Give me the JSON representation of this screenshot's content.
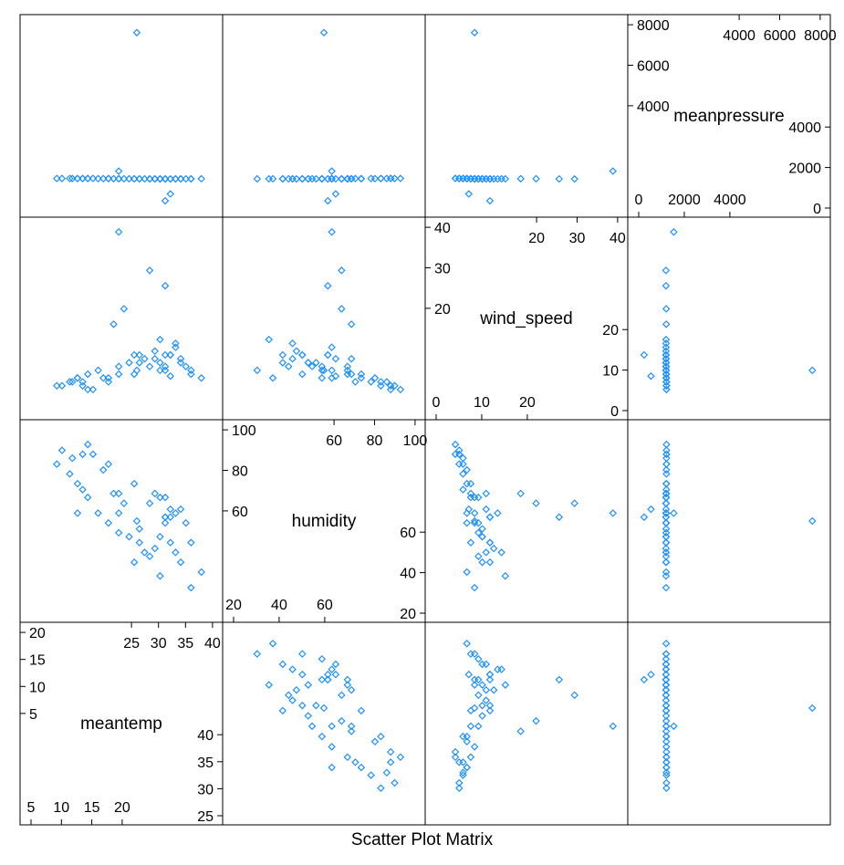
{
  "chart_data": {
    "type": "scatter",
    "subtype": "scatter-plot-matrix",
    "title": "Scatter Plot Matrix",
    "variables": [
      "meantemp",
      "humidity",
      "wind_speed",
      "meanpressure"
    ],
    "marker": "open-diamond",
    "marker_color": "#1E90FF",
    "panel_ranges": {
      "meantemp": [
        5,
        40
      ],
      "humidity": [
        10,
        102
      ],
      "wind_speed": [
        -2,
        45
      ],
      "meanpressure": [
        -250,
        8000
      ]
    },
    "diagonal_ticks": {
      "meantemp": {
        "lower": [
          "5",
          "10",
          "15",
          "20"
        ],
        "upper": [
          "25",
          "30",
          "35",
          "40"
        ],
        "left": [
          "5",
          "10",
          "15",
          "20"
        ],
        "right": [
          "25",
          "30",
          "35",
          "40"
        ]
      },
      "humidity": {
        "lower": [
          "20",
          "40",
          "60"
        ],
        "upper": [
          "60",
          "80",
          "100"
        ],
        "left": [
          "60",
          "80",
          "100"
        ],
        "right": [
          "20",
          "40",
          "60"
        ]
      },
      "wind_speed": {
        "lower": [
          "0",
          "10",
          "20"
        ],
        "upper": [
          "20",
          "30",
          "40"
        ],
        "left": [
          "20",
          "30",
          "40"
        ],
        "right": [
          "0",
          "10",
          "20"
        ]
      },
      "meanpressure": {
        "lower": [
          "0",
          "2000",
          "4000"
        ],
        "upper": [
          "4000",
          "6000",
          "8000"
        ],
        "left": [
          "4000",
          "6000",
          "8000"
        ],
        "right": [
          "0",
          "2000",
          "4000"
        ]
      }
    },
    "grid": false,
    "legend": "none",
    "data": {
      "meantemp": [
        10,
        12.5,
        14,
        15,
        16,
        18,
        20,
        22,
        24,
        26,
        27,
        28,
        29,
        30,
        31,
        32,
        33,
        34,
        35,
        36,
        38,
        25,
        30,
        22,
        15,
        20,
        31,
        28,
        33,
        16,
        11,
        13,
        34,
        30,
        19,
        25,
        17,
        29,
        32,
        21,
        23,
        26,
        14,
        36,
        31
      ],
      "humidity": [
        85,
        80,
        75,
        72,
        68,
        60,
        55,
        50,
        48,
        45,
        40,
        38,
        42,
        48,
        55,
        58,
        60,
        62,
        55,
        45,
        30,
        35,
        28,
        70,
        90,
        85,
        58,
        65,
        40,
        95,
        92,
        88,
        35,
        68,
        82,
        75,
        90,
        70,
        45,
        70,
        65,
        52,
        60,
        22,
        68
      ],
      "wind_speed": [
        4,
        5,
        6,
        5,
        7,
        8,
        6,
        9,
        10,
        12,
        11,
        9,
        13,
        10,
        8,
        12,
        14,
        11,
        9,
        7,
        6,
        12,
        16,
        7,
        4,
        5,
        30,
        34,
        15,
        3,
        4,
        5,
        10,
        8,
        6,
        7,
        3,
        11,
        12,
        20,
        24,
        10,
        6,
        8,
        9
      ],
      "meanpressure": [
        1017,
        1016,
        1015,
        1014,
        1013,
        1010,
        1008,
        1005,
        1003,
        1000,
        998,
        999,
        997,
        996,
        995,
        994,
        996,
        998,
        1000,
        1002,
        1004,
        1001,
        999,
        1009,
        1018,
        1016,
        995,
        993,
        1000,
        1019,
        1018,
        1017,
        1000,
        997,
        1012,
        1004,
        1019,
        998,
        996,
        1007,
        1006,
        1002,
        1014,
        1001,
        997
      ]
    },
    "outliers": {
      "meantemp": [
        25.5,
        22,
        32,
        31
      ],
      "humidity": [
        56,
        60,
        62,
        58
      ],
      "wind_speed": [
        8,
        44,
        6.5,
        12
      ],
      "meanpressure": [
        7679,
        1352,
        310,
        -3
      ]
    }
  }
}
